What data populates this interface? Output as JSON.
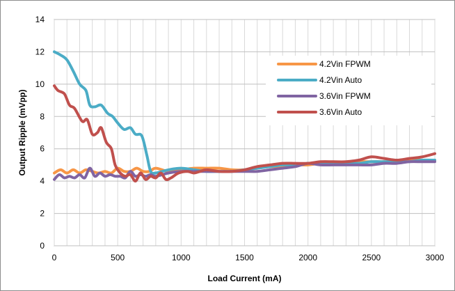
{
  "chart_data": {
    "type": "line",
    "title": "",
    "xlabel": "Load Current (mA)",
    "ylabel": "Output Ripple (mVpp)",
    "xlim": [
      0,
      3000
    ],
    "ylim": [
      0,
      14
    ],
    "x_ticks": [
      0,
      500,
      1000,
      1500,
      2000,
      2500,
      3000
    ],
    "y_ticks": [
      0,
      2,
      4,
      6,
      8,
      10,
      12,
      14
    ],
    "grid": true,
    "legend_placement": "upper-right",
    "series": [
      {
        "name": "4.2Vin FPWM",
        "color": "#f79646",
        "points": [
          [
            0,
            4.5
          ],
          [
            50,
            4.7
          ],
          [
            100,
            4.5
          ],
          [
            150,
            4.7
          ],
          [
            200,
            4.5
          ],
          [
            250,
            4.7
          ],
          [
            300,
            4.6
          ],
          [
            350,
            4.5
          ],
          [
            400,
            4.6
          ],
          [
            450,
            4.5
          ],
          [
            500,
            4.8
          ],
          [
            550,
            4.6
          ],
          [
            600,
            4.6
          ],
          [
            650,
            4.8
          ],
          [
            700,
            4.6
          ],
          [
            750,
            4.6
          ],
          [
            800,
            4.8
          ],
          [
            900,
            4.6
          ],
          [
            1000,
            4.7
          ],
          [
            1100,
            4.8
          ],
          [
            1200,
            4.8
          ],
          [
            1300,
            4.8
          ],
          [
            1400,
            4.7
          ],
          [
            1500,
            4.7
          ],
          [
            1600,
            4.8
          ],
          [
            1700,
            4.9
          ],
          [
            1800,
            4.9
          ],
          [
            1900,
            5.0
          ],
          [
            2000,
            5.0
          ],
          [
            2100,
            5.1
          ],
          [
            2200,
            5.1
          ],
          [
            2300,
            5.1
          ],
          [
            2400,
            5.2
          ],
          [
            2500,
            5.2
          ],
          [
            2600,
            5.2
          ],
          [
            2700,
            5.2
          ],
          [
            2800,
            5.3
          ],
          [
            2900,
            5.3
          ],
          [
            3000,
            5.3
          ]
        ]
      },
      {
        "name": "4.2Vin Auto",
        "color": "#4bacc6",
        "points": [
          [
            0,
            12.0
          ],
          [
            50,
            11.8
          ],
          [
            100,
            11.5
          ],
          [
            150,
            10.8
          ],
          [
            200,
            10.0
          ],
          [
            250,
            9.6
          ],
          [
            280,
            8.7
          ],
          [
            320,
            8.6
          ],
          [
            370,
            8.7
          ],
          [
            420,
            8.2
          ],
          [
            460,
            8.0
          ],
          [
            500,
            7.6
          ],
          [
            550,
            7.2
          ],
          [
            600,
            7.3
          ],
          [
            640,
            6.9
          ],
          [
            690,
            6.8
          ],
          [
            730,
            5.6
          ],
          [
            760,
            4.6
          ],
          [
            800,
            4.5
          ],
          [
            900,
            4.7
          ],
          [
            1000,
            4.8
          ],
          [
            1100,
            4.7
          ],
          [
            1200,
            4.6
          ],
          [
            1300,
            4.6
          ],
          [
            1400,
            4.6
          ],
          [
            1500,
            4.7
          ],
          [
            1600,
            4.8
          ],
          [
            1700,
            4.9
          ],
          [
            1800,
            5.0
          ],
          [
            1900,
            5.0
          ],
          [
            2000,
            5.1
          ],
          [
            2100,
            5.1
          ],
          [
            2200,
            5.1
          ],
          [
            2300,
            5.1
          ],
          [
            2400,
            5.1
          ],
          [
            2500,
            5.2
          ],
          [
            2600,
            5.2
          ],
          [
            2700,
            5.2
          ],
          [
            2800,
            5.2
          ],
          [
            2900,
            5.3
          ],
          [
            3000,
            5.3
          ]
        ]
      },
      {
        "name": "3.6Vin FPWM",
        "color": "#8064a2",
        "points": [
          [
            0,
            4.1
          ],
          [
            40,
            4.4
          ],
          [
            80,
            4.2
          ],
          [
            120,
            4.3
          ],
          [
            160,
            4.2
          ],
          [
            200,
            4.4
          ],
          [
            240,
            4.2
          ],
          [
            280,
            4.8
          ],
          [
            320,
            4.3
          ],
          [
            360,
            4.5
          ],
          [
            400,
            4.3
          ],
          [
            440,
            4.4
          ],
          [
            480,
            4.3
          ],
          [
            520,
            4.3
          ],
          [
            560,
            4.2
          ],
          [
            600,
            4.6
          ],
          [
            640,
            4.3
          ],
          [
            680,
            4.4
          ],
          [
            720,
            4.3
          ],
          [
            760,
            4.4
          ],
          [
            800,
            4.3
          ],
          [
            900,
            4.5
          ],
          [
            1000,
            4.6
          ],
          [
            1100,
            4.6
          ],
          [
            1200,
            4.6
          ],
          [
            1300,
            4.6
          ],
          [
            1400,
            4.6
          ],
          [
            1500,
            4.6
          ],
          [
            1600,
            4.6
          ],
          [
            1700,
            4.7
          ],
          [
            1800,
            4.8
          ],
          [
            1900,
            4.9
          ],
          [
            2000,
            5.1
          ],
          [
            2100,
            5.0
          ],
          [
            2200,
            5.0
          ],
          [
            2300,
            5.0
          ],
          [
            2400,
            5.0
          ],
          [
            2500,
            5.0
          ],
          [
            2600,
            5.1
          ],
          [
            2700,
            5.1
          ],
          [
            2800,
            5.2
          ],
          [
            2900,
            5.2
          ],
          [
            3000,
            5.2
          ]
        ]
      },
      {
        "name": "3.6Vin Auto",
        "color": "#c0504d",
        "points": [
          [
            0,
            9.9
          ],
          [
            30,
            9.6
          ],
          [
            80,
            9.4
          ],
          [
            120,
            8.7
          ],
          [
            160,
            8.5
          ],
          [
            220,
            7.7
          ],
          [
            260,
            7.8
          ],
          [
            300,
            6.9
          ],
          [
            340,
            7.0
          ],
          [
            370,
            7.3
          ],
          [
            410,
            6.4
          ],
          [
            450,
            6.0
          ],
          [
            480,
            5.0
          ],
          [
            520,
            4.5
          ],
          [
            560,
            4.3
          ],
          [
            600,
            4.4
          ],
          [
            640,
            4.0
          ],
          [
            680,
            4.5
          ],
          [
            720,
            4.1
          ],
          [
            760,
            4.3
          ],
          [
            800,
            4.2
          ],
          [
            840,
            4.5
          ],
          [
            880,
            4.1
          ],
          [
            920,
            4.2
          ],
          [
            980,
            4.5
          ],
          [
            1050,
            4.6
          ],
          [
            1100,
            4.5
          ],
          [
            1150,
            4.6
          ],
          [
            1200,
            4.7
          ],
          [
            1300,
            4.6
          ],
          [
            1400,
            4.6
          ],
          [
            1500,
            4.7
          ],
          [
            1600,
            4.9
          ],
          [
            1700,
            5.0
          ],
          [
            1800,
            5.1
          ],
          [
            1900,
            5.1
          ],
          [
            2000,
            5.1
          ],
          [
            2100,
            5.2
          ],
          [
            2200,
            5.2
          ],
          [
            2300,
            5.2
          ],
          [
            2400,
            5.3
          ],
          [
            2500,
            5.5
          ],
          [
            2600,
            5.4
          ],
          [
            2700,
            5.3
          ],
          [
            2800,
            5.4
          ],
          [
            2900,
            5.5
          ],
          [
            3000,
            5.7
          ]
        ]
      }
    ]
  }
}
